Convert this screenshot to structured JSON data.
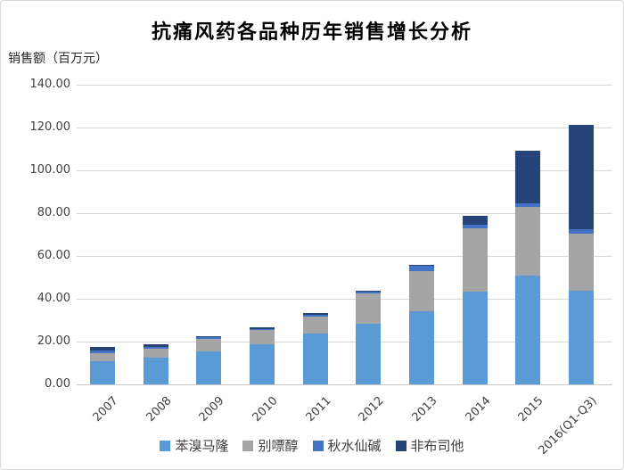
{
  "frame": {
    "background_color": "#ffffff",
    "border_color": "#d9d9d9"
  },
  "chart_data": {
    "type": "bar",
    "variant": "stacked-vertical",
    "title": "抗痛风药各品种历年销售增长分析",
    "y_axis_title": "销售额（百万元）",
    "xlabel": "",
    "ylabel": "销售额（百万元）",
    "ylim": [
      0,
      140
    ],
    "y_tick_step": 20,
    "y_ticks": [
      "140.00",
      "120.00",
      "100.00",
      "80.00",
      "60.00",
      "40.00",
      "20.00",
      "0.00"
    ],
    "grid": true,
    "legend_position": "bottom",
    "categories": [
      "2007",
      "2008",
      "2009",
      "2010",
      "2011",
      "2012",
      "2013",
      "2014",
      "2015",
      "2016(Q1-Q3)"
    ],
    "series": [
      {
        "name": "苯溴马隆",
        "color": "#5B9BD5",
        "values": [
          11.0,
          12.6,
          15.3,
          18.8,
          23.6,
          28.5,
          34.0,
          43.5,
          50.8,
          43.8
        ]
      },
      {
        "name": "别嘌醇",
        "color": "#A5A5A5",
        "values": [
          3.4,
          4.2,
          6.0,
          6.6,
          8.0,
          14.0,
          19.0,
          29.5,
          32.0,
          26.7
        ]
      },
      {
        "name": "秋水仙碱",
        "color": "#4472C4",
        "values": [
          1.6,
          0.8,
          0.6,
          0.6,
          0.8,
          1.0,
          2.5,
          1.5,
          1.8,
          1.8
        ]
      },
      {
        "name": "非布司他",
        "color": "#264478",
        "values": [
          1.6,
          1.2,
          0.8,
          0.7,
          1.0,
          0.3,
          0.5,
          4.2,
          24.6,
          49.0
        ]
      }
    ],
    "totals": [
      17.6,
      18.8,
      22.7,
      26.7,
      33.4,
      43.8,
      56.0,
      78.7,
      109.2,
      121.3
    ]
  }
}
